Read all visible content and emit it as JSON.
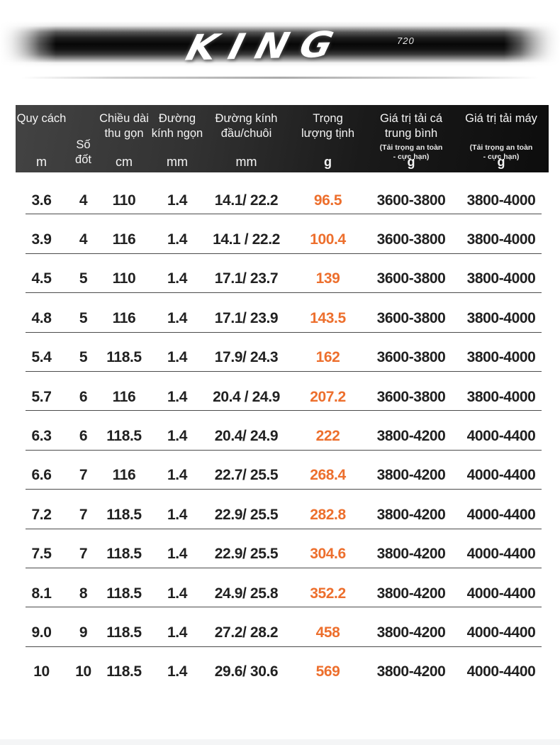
{
  "banner": {
    "logo_text": "KING",
    "model_number": "720"
  },
  "table": {
    "headers": [
      {
        "label": "Quy cách",
        "note": "",
        "unit": "m"
      },
      {
        "label": "Số đốt",
        "note": "",
        "unit": ""
      },
      {
        "label": "Chiều dài\nthu gọn",
        "note": "",
        "unit": "cm"
      },
      {
        "label": "Đường\nkính ngọn",
        "note": "",
        "unit": "mm"
      },
      {
        "label": "Đường kính\nđầu/chuôi",
        "note": "",
        "unit": "mm"
      },
      {
        "label": "Trọng\nlượng tịnh",
        "note": "",
        "unit": "g"
      },
      {
        "label": "Giá trị tải cá\ntrung bình",
        "note": "(Tải trọng an toàn\n- cực hạn)",
        "unit": "g"
      },
      {
        "label": "Giá trị tải máy",
        "note": "(Tải trọng an toàn\n- cực hạn)",
        "unit": "g"
      }
    ],
    "rows": [
      [
        "3.6",
        "4",
        "110",
        "1.4",
        "14.1/ 22.2",
        "96.5",
        "3600-3800",
        "3800-4000"
      ],
      [
        "3.9",
        "4",
        "116",
        "1.4",
        "14.1 / 22.2",
        "100.4",
        "3600-3800",
        "3800-4000"
      ],
      [
        "4.5",
        "5",
        "110",
        "1.4",
        "17.1/ 23.7",
        "139",
        "3600-3800",
        "3800-4000"
      ],
      [
        "4.8",
        "5",
        "116",
        "1.4",
        "17.1/ 23.9",
        "143.5",
        "3600-3800",
        "3800-4000"
      ],
      [
        "5.4",
        "5",
        "118.5",
        "1.4",
        "17.9/ 24.3",
        "162",
        "3600-3800",
        "3800-4000"
      ],
      [
        "5.7",
        "6",
        "116",
        "1.4",
        "20.4 / 24.9",
        "207.2",
        "3600-3800",
        "3800-4000"
      ],
      [
        "6.3",
        "6",
        "118.5",
        "1.4",
        "20.4/ 24.9",
        "222",
        "3800-4200",
        "4000-4400"
      ],
      [
        "6.6",
        "7",
        "116",
        "1.4",
        "22.7/ 25.5",
        "268.4",
        "3800-4200",
        "4000-4400"
      ],
      [
        "7.2",
        "7",
        "118.5",
        "1.4",
        "22.9/ 25.5",
        "282.8",
        "3800-4200",
        "4000-4400"
      ],
      [
        "7.5",
        "7",
        "118.5",
        "1.4",
        "22.9/ 25.5",
        "304.6",
        "3800-4200",
        "4000-4400"
      ],
      [
        "8.1",
        "8",
        "118.5",
        "1.4",
        "24.9/ 25.8",
        "352.2",
        "3800-4200",
        "4000-4400"
      ],
      [
        "9.0",
        "9",
        "118.5",
        "1.4",
        "27.2/ 28.2",
        "458",
        "3800-4200",
        "4000-4400"
      ],
      [
        "10",
        "10",
        "118.5",
        "1.4",
        "29.6/ 30.6",
        "569",
        "3800-4200",
        "4000-4400"
      ]
    ]
  },
  "colors": {
    "accent_orange": "#ed6f2d",
    "header_bg_left": "#434343",
    "header_bg_right": "#0d0d0d",
    "separator": "#4b4b4b",
    "body_text": "#212121",
    "bottom_strip": "#f4f5f6"
  }
}
